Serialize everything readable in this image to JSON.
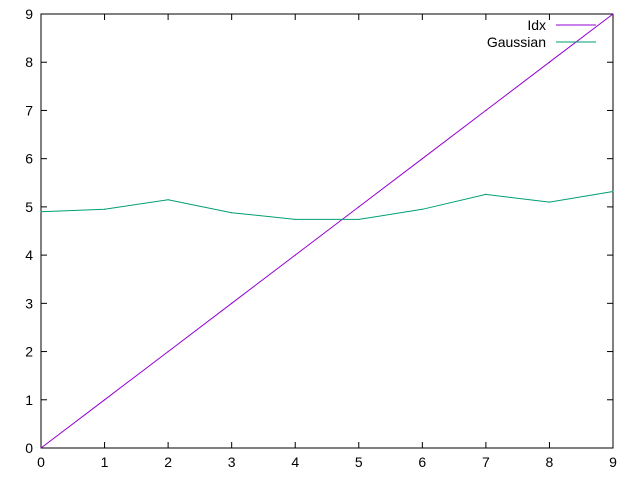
{
  "chart_data": {
    "type": "line",
    "title": "",
    "xlabel": "",
    "ylabel": "",
    "xlim": [
      0,
      9
    ],
    "ylim": [
      0,
      9
    ],
    "xticks": [
      0,
      1,
      2,
      3,
      4,
      5,
      6,
      7,
      8,
      9
    ],
    "yticks": [
      0,
      1,
      2,
      3,
      4,
      5,
      6,
      7,
      8,
      9
    ],
    "grid": false,
    "legend_position": "top-right",
    "series": [
      {
        "name": "Idx",
        "color": "#9400d3",
        "x": [
          0,
          1,
          2,
          3,
          4,
          5,
          6,
          7,
          8,
          9
        ],
        "y": [
          0,
          1,
          2,
          3,
          4,
          5,
          6,
          7,
          8,
          9
        ]
      },
      {
        "name": "Gaussian",
        "color": "#009e73",
        "x": [
          0,
          1,
          2,
          3,
          4,
          5,
          6,
          7,
          8,
          9
        ],
        "y": [
          4.9,
          4.95,
          5.15,
          4.88,
          4.74,
          4.74,
          4.95,
          5.26,
          5.1,
          5.32
        ]
      }
    ]
  }
}
